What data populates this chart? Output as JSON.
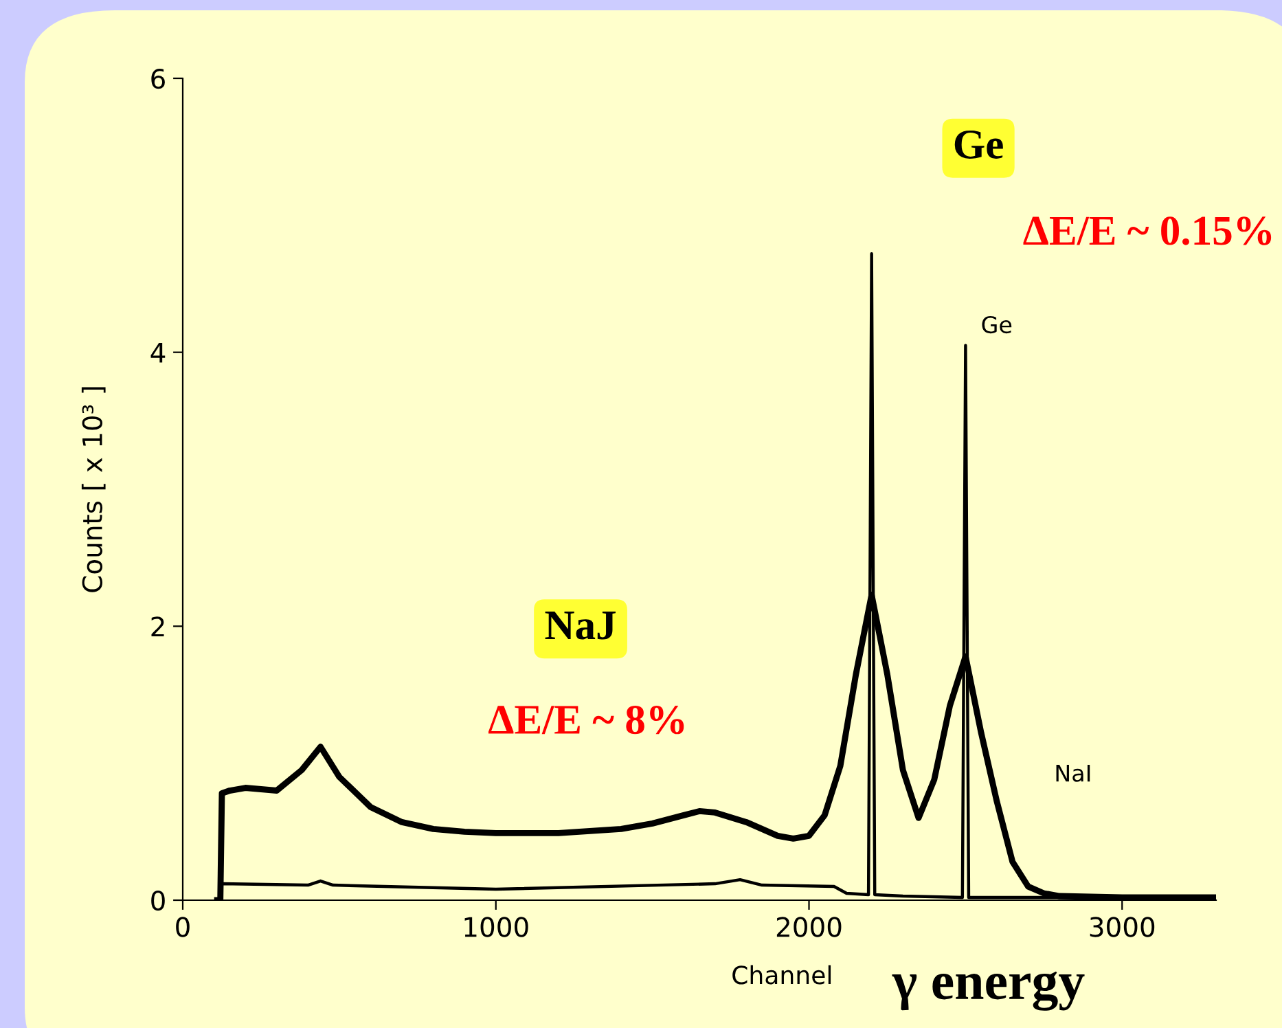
{
  "chart_data": {
    "type": "line",
    "xlabel": "Channel",
    "ylabel": "Counts [ x 10³ ]",
    "xlim": [
      0,
      3300
    ],
    "ylim": [
      0,
      6
    ],
    "xticks": [
      0,
      1000,
      2000,
      3000
    ],
    "yticks": [
      0,
      2,
      4,
      6
    ],
    "grid": false,
    "legend": false,
    "marker": "none",
    "line_style": "solid",
    "series": [
      {
        "color": "#000000",
        "x": [
          110,
          120,
          125,
          150,
          200,
          300,
          380,
          440,
          500,
          600,
          700,
          800,
          900,
          1000,
          1200,
          1400,
          1500,
          1600,
          1650,
          1700,
          1800,
          1900,
          1950,
          2000,
          2050,
          2100,
          2150,
          2200,
          2250,
          2300,
          2350,
          2400,
          2450,
          2500,
          2550,
          2600,
          2650,
          2700,
          2750,
          2800,
          3000,
          3300
        ],
        "values": [
          0,
          0,
          0.78,
          0.8,
          0.82,
          0.8,
          0.95,
          1.12,
          0.9,
          0.68,
          0.57,
          0.52,
          0.5,
          0.49,
          0.49,
          0.52,
          0.56,
          0.62,
          0.65,
          0.64,
          0.57,
          0.47,
          0.45,
          0.47,
          0.62,
          0.98,
          1.65,
          2.23,
          1.65,
          0.95,
          0.6,
          0.88,
          1.42,
          1.78,
          1.22,
          0.72,
          0.28,
          0.1,
          0.05,
          0.03,
          0.02,
          0.02
        ]
      },
      {
        "color": "#000000",
        "x": [
          110,
          120,
          125,
          400,
          440,
          480,
          1000,
          1700,
          1780,
          1850,
          2080,
          2120,
          2190,
          2200,
          2210,
          2300,
          2490,
          2500,
          2510,
          2700,
          3300
        ],
        "values": [
          0,
          0,
          0.12,
          0.11,
          0.14,
          0.11,
          0.08,
          0.12,
          0.15,
          0.11,
          0.1,
          0.05,
          0.04,
          4.72,
          0.04,
          0.03,
          0.02,
          4.05,
          0.02,
          0.02,
          0.02
        ]
      }
    ],
    "annotations": [
      {
        "text": "Ge",
        "x": 2500,
        "y": 4.05
      },
      {
        "text": "NaI",
        "x": 2600,
        "y": 0.72
      },
      "Ge",
      "ΔE/E ~ 0.15%",
      "NaJ",
      "ΔE/E ~ 8%",
      "γ energy"
    ]
  }
}
